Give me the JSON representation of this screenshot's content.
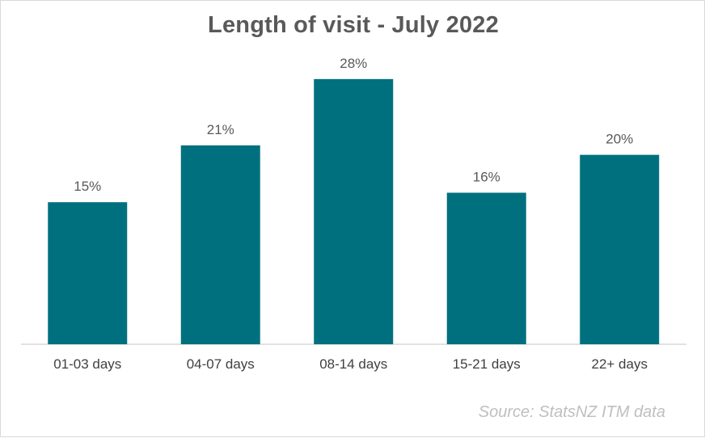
{
  "chart_data": {
    "type": "bar",
    "title": "Length of visit - July 2022",
    "categories": [
      "01-03 days",
      "04-07 days",
      "08-14 days",
      "15-21 days",
      "22+ days"
    ],
    "values": [
      15,
      21,
      28,
      16,
      20
    ],
    "value_labels": [
      "15%",
      "21%",
      "28%",
      "16%",
      "20%"
    ],
    "unit": "%",
    "xlabel": "",
    "ylabel": "",
    "ylim": [
      0,
      35
    ],
    "grid": false,
    "legend": "none",
    "bar_color": "#00707f",
    "source": "Source: StatsNZ ITM data"
  }
}
